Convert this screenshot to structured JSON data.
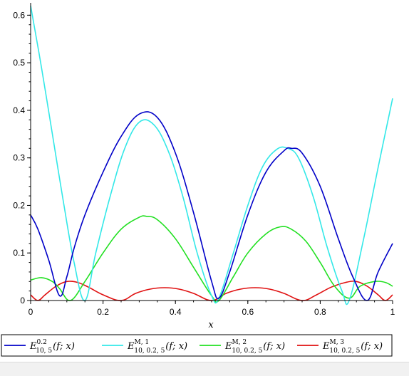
{
  "chart_data": {
    "type": "line",
    "xlabel": "x",
    "ylabel": "",
    "xlim": [
      0,
      1
    ],
    "ylim": [
      0,
      0.62
    ],
    "xticks": [
      0,
      0.2,
      0.4,
      0.6,
      0.8,
      1
    ],
    "xtick_labels": [
      "0",
      "0.2",
      "0.4",
      "0.6",
      "0.8",
      "1"
    ],
    "yticks": [
      0,
      0.1,
      0.2,
      0.3,
      0.4,
      0.5,
      0.6
    ],
    "ytick_labels": [
      "0",
      "0.1",
      "0.2",
      "0.3",
      "0.4",
      "0.5",
      "0.6"
    ],
    "grid": false,
    "legend_position": "bottom",
    "series": [
      {
        "name": "E^{0.2}_{10, 5}(f; x)",
        "legend": {
          "base": "E",
          "sup": "0.2",
          "sub": "10, 5",
          "arg": "(f; x)"
        },
        "color": "#0000c8",
        "x": [
          0,
          0.02,
          0.05,
          0.08,
          0.1,
          0.12,
          0.15,
          0.2,
          0.25,
          0.3,
          0.35,
          0.4,
          0.45,
          0.5,
          0.52,
          0.55,
          0.6,
          0.65,
          0.7,
          0.72,
          0.75,
          0.8,
          0.85,
          0.89,
          0.93,
          0.96,
          1
        ],
        "y": [
          0.18,
          0.15,
          0.085,
          0.01,
          0.05,
          0.11,
          0.18,
          0.27,
          0.345,
          0.392,
          0.385,
          0.31,
          0.185,
          0.04,
          0.005,
          0.06,
          0.18,
          0.27,
          0.315,
          0.32,
          0.31,
          0.24,
          0.13,
          0.05,
          0.0,
          0.06,
          0.12
        ]
      },
      {
        "name": "E^{M,1}_{10, 0.2, 5}(f; x)",
        "legend": {
          "base": "E",
          "sup": "M, 1",
          "sub": "10, 0.2, 5",
          "arg": "(f; x)"
        },
        "color": "#33e8e8",
        "x": [
          0,
          0.03,
          0.06,
          0.09,
          0.12,
          0.15,
          0.18,
          0.22,
          0.26,
          0.3,
          0.34,
          0.38,
          0.42,
          0.46,
          0.5,
          0.52,
          0.56,
          0.6,
          0.64,
          0.68,
          0.71,
          0.74,
          0.78,
          0.82,
          0.86,
          0.88,
          0.92,
          0.96,
          1
        ],
        "y": [
          0.63,
          0.49,
          0.35,
          0.21,
          0.08,
          0.0,
          0.1,
          0.22,
          0.32,
          0.375,
          0.37,
          0.315,
          0.22,
          0.1,
          0.01,
          0.005,
          0.1,
          0.2,
          0.28,
          0.318,
          0.32,
          0.3,
          0.22,
          0.11,
          0.02,
          0.0,
          0.13,
          0.28,
          0.425
        ]
      },
      {
        "name": "E^{M,2}_{10, 0.2, 5}(f; x)",
        "legend": {
          "base": "E",
          "sup": "M, 2",
          "sub": "10, 0.2, 5",
          "arg": "(f; x)"
        },
        "color": "#22e022",
        "x": [
          0,
          0.03,
          0.06,
          0.08,
          0.11,
          0.15,
          0.2,
          0.25,
          0.3,
          0.32,
          0.35,
          0.4,
          0.45,
          0.5,
          0.52,
          0.56,
          0.6,
          0.65,
          0.69,
          0.72,
          0.76,
          0.8,
          0.84,
          0.88,
          0.91,
          0.95,
          0.98,
          1
        ],
        "y": [
          0.043,
          0.048,
          0.04,
          0.025,
          0.0,
          0.04,
          0.1,
          0.15,
          0.175,
          0.177,
          0.17,
          0.13,
          0.07,
          0.01,
          0.0,
          0.05,
          0.1,
          0.14,
          0.155,
          0.15,
          0.125,
          0.08,
          0.03,
          0.005,
          0.03,
          0.04,
          0.038,
          0.03
        ]
      },
      {
        "name": "E^{M,3}_{10, 0.2, 5}(f; x)",
        "legend": {
          "base": "E",
          "sup": "M, 3",
          "sub": "10, 0.2, 5",
          "arg": "(f; x)"
        },
        "color": "#e01010",
        "x": [
          0,
          0.02,
          0.04,
          0.07,
          0.1,
          0.13,
          0.16,
          0.2,
          0.25,
          0.29,
          0.33,
          0.37,
          0.41,
          0.45,
          0.5,
          0.54,
          0.58,
          0.62,
          0.66,
          0.7,
          0.75,
          0.79,
          0.83,
          0.87,
          0.9,
          0.93,
          0.96,
          0.98,
          1
        ],
        "y": [
          0.012,
          0.0,
          0.012,
          0.03,
          0.04,
          0.038,
          0.028,
          0.012,
          0.0,
          0.015,
          0.024,
          0.027,
          0.024,
          0.015,
          0.0,
          0.015,
          0.024,
          0.027,
          0.024,
          0.015,
          0.0,
          0.012,
          0.028,
          0.038,
          0.04,
          0.03,
          0.012,
          0.0,
          0.012
        ]
      }
    ]
  }
}
